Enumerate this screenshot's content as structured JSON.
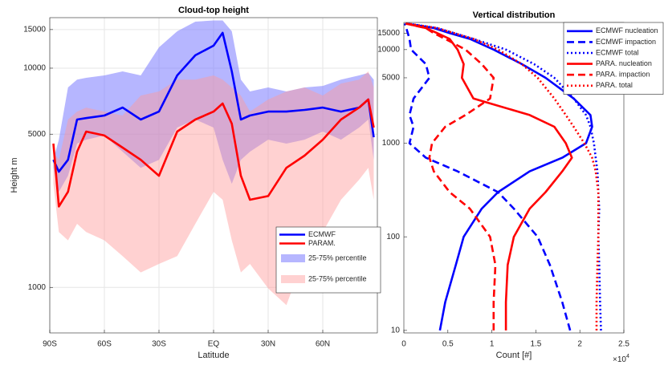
{
  "chart_data": [
    {
      "type": "line",
      "title": "Cloud-top height",
      "xlabel": "Latitude",
      "ylabel": "Height m",
      "x": [
        -88,
        -85,
        -80,
        -75,
        -70,
        -60,
        -50,
        -40,
        -30,
        -20,
        -10,
        0,
        5,
        10,
        15,
        20,
        30,
        40,
        50,
        60,
        70,
        80,
        85,
        88
      ],
      "series": [
        {
          "name": "ECMWF",
          "color": "#0000ff",
          "values": [
            3820,
            3370,
            3820,
            5830,
            5920,
            6080,
            6610,
            5830,
            6340,
            9270,
            11450,
            12670,
            14500,
            9670,
            5830,
            6080,
            6340,
            6340,
            6450,
            6610,
            6340,
            6610,
            7200,
            4840
          ]
        },
        {
          "name": "PARAM.",
          "color": "#ff0000",
          "values": [
            4530,
            2340,
            2730,
            4160,
            5140,
            4930,
            4340,
            3820,
            3230,
            5140,
            5830,
            6340,
            6900,
            5580,
            3230,
            2510,
            2610,
            3510,
            3990,
            4720,
            5830,
            6610,
            7200,
            5360
          ]
        },
        {
          "name": "25-75% percentile",
          "color": "#7a7aff",
          "opacity": 0.55,
          "upper": [
            3820,
            4720,
            8170,
            8870,
            9040,
            9270,
            9670,
            9270,
            12450,
            14730,
            16300,
            16500,
            16500,
            14730,
            8870,
            7830,
            8170,
            7830,
            8170,
            8300,
            8870,
            9270,
            9510,
            8870
          ],
          "lower": [
            3510,
            2730,
            3230,
            4530,
            4720,
            4930,
            4160,
            3510,
            3820,
            5360,
            5830,
            5360,
            3820,
            2970,
            3820,
            4160,
            4720,
            4530,
            4720,
            5140,
            4720,
            5360,
            5830,
            3820
          ]
        },
        {
          "name": "25-75% percentile",
          "color": "#ff9a9a",
          "opacity": 0.45,
          "upper": [
            4160,
            3820,
            5830,
            6340,
            6610,
            6340,
            6080,
            7500,
            7830,
            8870,
            8870,
            9270,
            8870,
            8170,
            7500,
            6340,
            7200,
            7830,
            8170,
            7500,
            8510,
            8870,
            9670,
            8170
          ],
          "lower": [
            2970,
            1790,
            1640,
            1950,
            1790,
            1640,
            1390,
            1170,
            1280,
            1390,
            1950,
            2730,
            2510,
            1640,
            1170,
            1280,
            990,
            830,
            1390,
            1790,
            2510,
            3100,
            3510,
            2510
          ]
        }
      ],
      "xlim": [
        -90,
        90
      ],
      "xticks": [
        {
          "value": -90,
          "label": "90S"
        },
        {
          "value": -60,
          "label": "60S"
        },
        {
          "value": -30,
          "label": "30S"
        },
        {
          "value": 0,
          "label": "EQ"
        },
        {
          "value": 30,
          "label": "30N"
        },
        {
          "value": 60,
          "label": "60N"
        }
      ],
      "ylim": [
        620,
        17000
      ],
      "yscale": "log",
      "yticks": [
        1000,
        5000,
        10000,
        15000
      ],
      "grid": true,
      "legend": "lower right"
    },
    {
      "type": "profile",
      "title": "Vertical distribution",
      "xlabel": "Count [#]",
      "x_multiplier_base": "×10",
      "x_multiplier_exponent": "4",
      "y": [
        10,
        20,
        50,
        100,
        200,
        300,
        500,
        700,
        1000,
        1500,
        2000,
        3000,
        5000,
        7000,
        10000,
        13000,
        15000,
        17000,
        19000
      ],
      "series": [
        {
          "name": "ECMWF nucleation",
          "color": "#0000ff",
          "dash": "solid",
          "values": [
            4100,
            4700,
            5900,
            6800,
            8850,
            10700,
            14300,
            18000,
            20700,
            21400,
            21200,
            19300,
            16100,
            13400,
            10200,
            7500,
            5200,
            3400,
            200
          ]
        },
        {
          "name": "ECMWF impaction",
          "color": "#0000ff",
          "dash": "dashed",
          "values": [
            18900,
            18000,
            16600,
            15200,
            12500,
            10700,
            6100,
            2500,
            640,
            1100,
            640,
            1100,
            2900,
            2500,
            820,
            640,
            450,
            270,
            100
          ]
        },
        {
          "name": "ECMWF total",
          "color": "#0000ff",
          "dash": "dotted",
          "values": [
            22400,
            22300,
            22200,
            22100,
            22200,
            22100,
            22000,
            21800,
            21600,
            21200,
            20700,
            19300,
            17100,
            14800,
            11600,
            7900,
            5700,
            3800,
            300
          ]
        },
        {
          "name": "PARA. nucleation",
          "color": "#ff0000",
          "dash": "solid",
          "values": [
            11600,
            11600,
            11800,
            12500,
            14300,
            16100,
            18000,
            19100,
            18400,
            17100,
            14300,
            7900,
            6600,
            6800,
            6100,
            5200,
            3800,
            2500,
            200
          ]
        },
        {
          "name": "PARA. impaction",
          "color": "#ff0000",
          "dash": "dashed",
          "values": [
            10200,
            10200,
            10400,
            9800,
            7500,
            5200,
            3400,
            2900,
            3200,
            4700,
            7000,
            9800,
            10200,
            8850,
            7000,
            4700,
            3400,
            2500,
            200
          ]
        },
        {
          "name": "PARA. total",
          "color": "#ff0000",
          "dash": "dotted",
          "values": [
            21900,
            21900,
            22000,
            22100,
            22100,
            22100,
            21800,
            21400,
            20500,
            19300,
            18400,
            17100,
            15200,
            13400,
            10700,
            7900,
            5700,
            3800,
            400
          ]
        }
      ],
      "xlim": [
        0,
        25000
      ],
      "xticks": [
        0,
        {
          "value": 5000,
          "label": "0.5"
        },
        {
          "value": 10000,
          "label": "1"
        },
        {
          "value": 15000,
          "label": "1.5"
        },
        {
          "value": 20000,
          "label": "2"
        },
        {
          "value": 25000,
          "label": "2.5"
        }
      ],
      "ylim": [
        9.4,
        19500
      ],
      "yscale": "log",
      "yticks": [
        10,
        100,
        1000,
        5000,
        10000,
        15000
      ],
      "grid": false,
      "legend": "upper right"
    }
  ]
}
